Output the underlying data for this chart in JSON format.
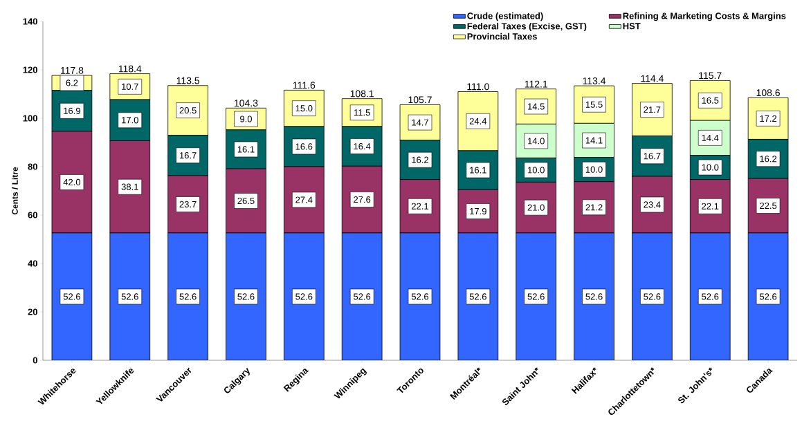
{
  "chart_data": {
    "type": "bar",
    "stacked": true,
    "ylabel": "Cents / Litre",
    "categories": [
      "Whitehorse",
      "Yellowknife",
      "Vancouver",
      "Calgary",
      "Regina",
      "Winnipeg",
      "Toronto",
      "Montréal*",
      "Saint John*",
      "Halifax*",
      "Charlottetown*",
      "St. John's*",
      "Canada"
    ],
    "series": [
      {
        "name": "Crude (estimated)",
        "color": "#3366ff",
        "values": [
          52.6,
          52.6,
          52.6,
          52.6,
          52.6,
          52.6,
          52.6,
          52.6,
          52.6,
          52.6,
          52.6,
          52.6,
          52.6
        ],
        "value_labels": [
          "52.6",
          "52.6",
          "52.6",
          "52.6",
          "52.6",
          "52.6",
          "52.6",
          "52.6",
          "52.6",
          "52.6",
          "52.6",
          "52.6",
          "52.6"
        ]
      },
      {
        "name": "Refining & Marketing Costs & Margins",
        "color": "#993366",
        "values": [
          42.0,
          38.1,
          23.7,
          26.5,
          27.4,
          27.6,
          22.1,
          17.9,
          21.0,
          21.2,
          23.4,
          22.1,
          22.5
        ],
        "value_labels": [
          "42.0",
          "38.1",
          "23.7",
          "26.5",
          "27.4",
          "27.6",
          "22.1",
          "17.9",
          "21.0",
          "21.2",
          "23.4",
          "22.1",
          "22.5"
        ]
      },
      {
        "name": "Federal Taxes (Excise, GST)",
        "color": "#006666",
        "values": [
          16.9,
          17.0,
          16.7,
          16.1,
          16.6,
          16.4,
          16.2,
          16.1,
          10.0,
          10.0,
          16.7,
          10.0,
          16.2
        ],
        "value_labels": [
          "16.9",
          "17.0",
          "16.7",
          "16.1",
          "16.6",
          "16.4",
          "16.2",
          "16.1",
          "10.0",
          "10.0",
          "16.7",
          "10.0",
          "16.2"
        ]
      },
      {
        "name": "HST",
        "color": "#ccffcc",
        "values": [
          null,
          null,
          null,
          null,
          null,
          null,
          null,
          null,
          14.0,
          14.1,
          null,
          14.4,
          null
        ],
        "value_labels": [
          null,
          null,
          null,
          null,
          null,
          null,
          null,
          null,
          "14.0",
          "14.1",
          null,
          "14.4",
          null
        ]
      },
      {
        "name": "Provincial Taxes",
        "color": "#ffff99",
        "values": [
          6.2,
          10.7,
          20.5,
          9.0,
          15.0,
          11.5,
          14.7,
          24.4,
          14.5,
          15.5,
          21.7,
          16.5,
          17.2
        ],
        "value_labels": [
          "6.2",
          "10.7",
          "20.5",
          "9.0",
          "15.0",
          "11.5",
          "14.7",
          "24.4",
          "14.5",
          "15.5",
          "21.7",
          "16.5",
          "17.2"
        ]
      }
    ],
    "totals": [
      "117.8",
      "118.4",
      "113.5",
      "104.3",
      "111.6",
      "108.1",
      "105.7",
      "111.0",
      "112.1",
      "113.4",
      "114.4",
      "115.7",
      "108.6"
    ],
    "ylim": [
      0,
      140
    ],
    "yticks": [
      0,
      20,
      40,
      60,
      80,
      100,
      120,
      140
    ],
    "grid": false,
    "legend": "top"
  }
}
